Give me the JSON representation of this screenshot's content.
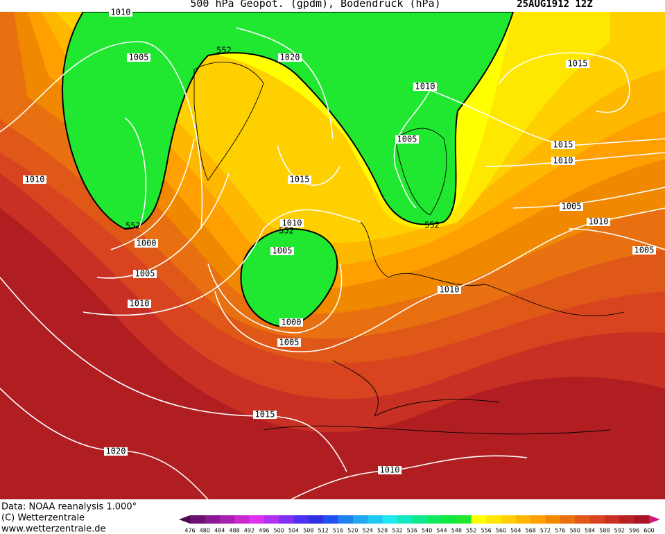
{
  "header": {
    "title": "500 hPa Geopot. (gpdm), Bodendruck (hPa)",
    "date": "25AUG1912 12Z"
  },
  "map": {
    "contour_labels": [
      1010,
      1005,
      552,
      1020,
      1015,
      1010,
      1005,
      1015,
      1010,
      1010,
      1015,
      1005,
      1010,
      1010,
      552,
      552,
      552,
      1000,
      1005,
      1005,
      1005,
      1010,
      1010,
      1000,
      1005,
      1015,
      1020,
      1010
    ]
  },
  "footer": {
    "source": "Data: NOAA reanalysis 1.000°",
    "copyright": "(C) Wetterzentrale",
    "url": "www.wetterzentrale.de"
  },
  "legend": {
    "labels": [
      476,
      480,
      484,
      488,
      492,
      496,
      500,
      504,
      508,
      512,
      516,
      520,
      524,
      528,
      532,
      536,
      540,
      544,
      548,
      552,
      556,
      560,
      564,
      568,
      572,
      576,
      580,
      584,
      588,
      592,
      596,
      600
    ],
    "colors": [
      "#4a0a4a",
      "#6a1070",
      "#8a1890",
      "#a820b0",
      "#c828d0",
      "#e030f0",
      "#b030f0",
      "#8030f0",
      "#5030f0",
      "#3030e0",
      "#2050f0",
      "#2080f0",
      "#20a8f0",
      "#20c8f0",
      "#20e8f0",
      "#10e8c0",
      "#10e890",
      "#10e860",
      "#10e840",
      "#20e830",
      "#ffff00",
      "#ffe800",
      "#ffd000",
      "#ffb800",
      "#ffa000",
      "#f08800",
      "#e87010",
      "#e05818",
      "#d84420",
      "#c83024",
      "#b82024",
      "#a81424",
      "#d01880"
    ]
  }
}
